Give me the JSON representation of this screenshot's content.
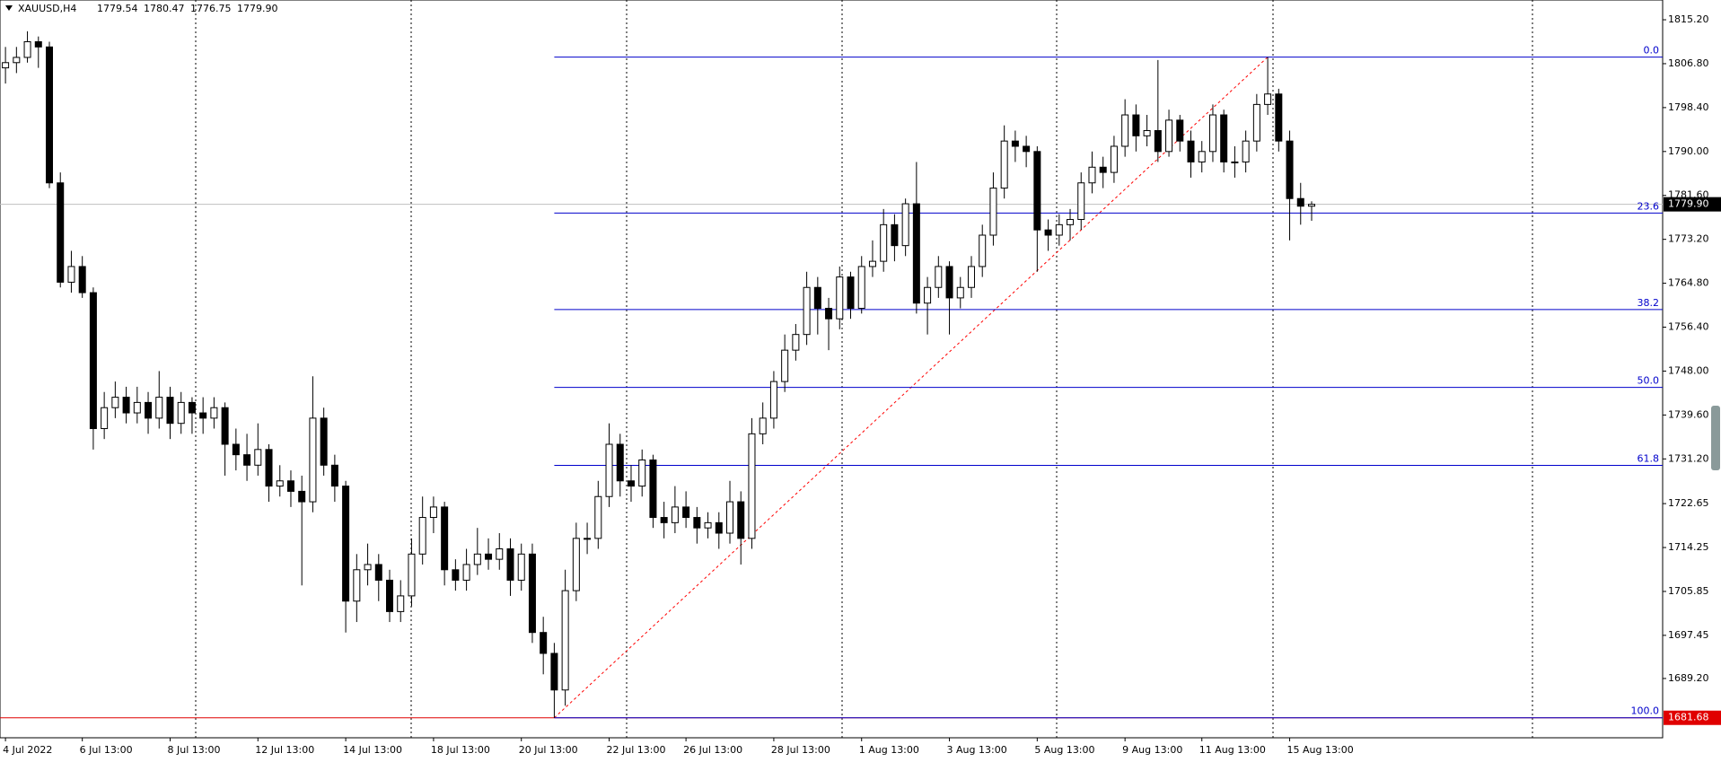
{
  "chart_data": {
    "type": "candlestick",
    "symbol": "XAUUSD,H4",
    "header_ohlc": [
      "1779.54",
      "1780.47",
      "1776.75",
      "1779.90"
    ],
    "up_color": "#ffffff",
    "down_color": "#000000",
    "fib_color": "#0000cc",
    "ylim": [
      1677.86,
      1818.98
    ],
    "yticks": [
      {
        "value": 1815.2,
        "label": "1815.20"
      },
      {
        "value": 1806.8,
        "label": "1806.80"
      },
      {
        "value": 1798.4,
        "label": "1798.40"
      },
      {
        "value": 1790,
        "label": "1790.00"
      },
      {
        "value": 1781.6,
        "label": "1781.60"
      },
      {
        "value": 1773.2,
        "label": "1773.20"
      },
      {
        "value": 1764.8,
        "label": "1764.80"
      },
      {
        "value": 1756.4,
        "label": "1756.40"
      },
      {
        "value": 1748,
        "label": "1748.00"
      },
      {
        "value": 1739.6,
        "label": "1739.60"
      },
      {
        "value": 1731.2,
        "label": "1731.20"
      },
      {
        "value": 1722.65,
        "label": "1722.65"
      },
      {
        "value": 1714.25,
        "label": "1714.25"
      },
      {
        "value": 1705.85,
        "label": "1705.85"
      },
      {
        "value": 1697.45,
        "label": "1697.45"
      },
      {
        "value": 1689.2,
        "label": "1689.20"
      }
    ],
    "last_price": {
      "value": 1779.9,
      "label": "1779.90"
    },
    "hline": 1681.68,
    "fibonacci": {
      "high": 1808.06,
      "low": 1681.68,
      "levels": [
        {
          "value": 0,
          "label": "0.0"
        },
        23.6,
        38.2,
        {
          "value": 50,
          "label": "50.0"
        },
        61.8,
        {
          "value": 100,
          "label": "100.0"
        }
      ]
    },
    "categories": [
      "4 Jul 2022",
      null,
      null,
      null,
      null,
      null,
      null,
      "6 Jul 13:00",
      null,
      null,
      null,
      null,
      null,
      null,
      null,
      "8 Jul 13:00",
      null,
      null,
      null,
      null,
      null,
      null,
      null,
      "12 Jul 13:00",
      null,
      null,
      null,
      null,
      null,
      null,
      null,
      "14 Jul 13:00",
      null,
      null,
      null,
      null,
      null,
      null,
      null,
      "18 Jul 13:00",
      null,
      null,
      null,
      null,
      null,
      null,
      null,
      "20 Jul 13:00",
      null,
      null,
      null,
      null,
      null,
      null,
      null,
      "22 Jul 13:00",
      null,
      null,
      null,
      null,
      null,
      null,
      "26 Jul 13:00",
      null,
      null,
      null,
      null,
      null,
      null,
      null,
      "28 Jul 13:00",
      null,
      null,
      null,
      null,
      null,
      null,
      null,
      "1 Aug 13:00",
      null,
      null,
      null,
      null,
      null,
      null,
      null,
      "3 Aug 13:00",
      null,
      null,
      null,
      null,
      null,
      null,
      null,
      "5 Aug 13:00",
      null,
      null,
      null,
      null,
      null,
      null,
      null,
      "9 Aug 13:00",
      null,
      null,
      null,
      null,
      null,
      null,
      "11 Aug 13:00",
      null,
      null,
      null,
      null,
      null,
      null,
      null,
      "15 Aug 13:00",
      null,
      null
    ],
    "candles": [
      [
        1806,
        1810,
        1803,
        1807
      ],
      [
        1807,
        1810,
        1805,
        1808
      ],
      [
        1808,
        1813,
        1807,
        1811
      ],
      [
        1811,
        1812,
        1806,
        1810
      ],
      [
        1810,
        1811,
        1783,
        1784
      ],
      [
        1784,
        1786,
        1764,
        1765
      ],
      [
        1765,
        1771,
        1763,
        1768
      ],
      [
        1768,
        1770,
        1762,
        1763
      ],
      [
        1763,
        1764,
        1733,
        1737
      ],
      [
        1737,
        1744,
        1735,
        1741
      ],
      [
        1741,
        1746,
        1739,
        1743
      ],
      [
        1743,
        1745,
        1738,
        1740
      ],
      [
        1740,
        1745,
        1738,
        1742
      ],
      [
        1742,
        1744,
        1736,
        1739
      ],
      [
        1739,
        1748,
        1737,
        1743
      ],
      [
        1743,
        1745,
        1735,
        1738
      ],
      [
        1738,
        1744,
        1736,
        1742
      ],
      [
        1742,
        1743,
        1736,
        1740
      ],
      [
        1740,
        1743,
        1736,
        1739
      ],
      [
        1739,
        1743,
        1737,
        1741
      ],
      [
        1741,
        1742,
        1728,
        1734
      ],
      [
        1734,
        1737,
        1729,
        1732
      ],
      [
        1732,
        1736,
        1727,
        1730
      ],
      [
        1730,
        1738,
        1728,
        1733
      ],
      [
        1733,
        1734,
        1723,
        1726
      ],
      [
        1726,
        1730,
        1724,
        1727
      ],
      [
        1727,
        1729,
        1722,
        1725
      ],
      [
        1725,
        1728,
        1707,
        1723
      ],
      [
        1723,
        1747,
        1721,
        1739
      ],
      [
        1739,
        1741,
        1728,
        1730
      ],
      [
        1730,
        1732,
        1723,
        1726
      ],
      [
        1726,
        1727,
        1698,
        1704
      ],
      [
        1704,
        1713,
        1700,
        1710
      ],
      [
        1710,
        1715,
        1707,
        1711
      ],
      [
        1711,
        1713,
        1704,
        1708
      ],
      [
        1708,
        1710,
        1700,
        1702
      ],
      [
        1702,
        1708,
        1700,
        1705
      ],
      [
        1705,
        1716,
        1703,
        1713
      ],
      [
        1713,
        1724,
        1711,
        1720
      ],
      [
        1720,
        1724,
        1717,
        1722
      ],
      [
        1722,
        1723,
        1707,
        1710
      ],
      [
        1710,
        1712,
        1706,
        1708
      ],
      [
        1708,
        1714,
        1706,
        1711
      ],
      [
        1711,
        1718,
        1709,
        1713
      ],
      [
        1713,
        1716,
        1710,
        1712
      ],
      [
        1712,
        1717,
        1710,
        1714
      ],
      [
        1714,
        1716,
        1705,
        1708
      ],
      [
        1708,
        1715,
        1706,
        1713
      ],
      [
        1713,
        1715,
        1696,
        1698
      ],
      [
        1698,
        1701,
        1690,
        1694
      ],
      [
        1694,
        1696,
        1681.68,
        1687
      ],
      [
        1687,
        1710,
        1684,
        1706
      ],
      [
        1706,
        1719,
        1704,
        1716
      ],
      [
        1716,
        1719,
        1713,
        1716
      ],
      [
        1716,
        1727,
        1714,
        1724
      ],
      [
        1724,
        1738,
        1722,
        1734
      ],
      [
        1734,
        1736,
        1724,
        1727
      ],
      [
        1727,
        1730,
        1723,
        1726
      ],
      [
        1726,
        1733,
        1724,
        1731
      ],
      [
        1731,
        1732,
        1718,
        1720
      ],
      [
        1720,
        1723,
        1716,
        1719
      ],
      [
        1719,
        1726,
        1717,
        1722
      ],
      [
        1722,
        1725,
        1718,
        1720
      ],
      [
        1720,
        1722,
        1715,
        1718
      ],
      [
        1718,
        1721,
        1716,
        1719
      ],
      [
        1719,
        1721,
        1714,
        1717
      ],
      [
        1717,
        1727,
        1715,
        1723
      ],
      [
        1723,
        1725,
        1711,
        1716
      ],
      [
        1716,
        1739,
        1714,
        1736
      ],
      [
        1736,
        1742,
        1734,
        1739
      ],
      [
        1739,
        1748,
        1737,
        1746
      ],
      [
        1746,
        1755,
        1744,
        1752
      ],
      [
        1752,
        1757,
        1750,
        1755
      ],
      [
        1755,
        1767,
        1753,
        1764
      ],
      [
        1764,
        1766,
        1755,
        1760
      ],
      [
        1760,
        1762,
        1752,
        1758
      ],
      [
        1758,
        1768,
        1756,
        1766
      ],
      [
        1766,
        1767,
        1758,
        1760
      ],
      [
        1760,
        1770,
        1759,
        1768
      ],
      [
        1768,
        1773,
        1766,
        1769
      ],
      [
        1769,
        1779,
        1767,
        1776
      ],
      [
        1776,
        1778,
        1769,
        1772
      ],
      [
        1772,
        1781,
        1770,
        1780
      ],
      [
        1780,
        1788,
        1759,
        1761
      ],
      [
        1761,
        1766,
        1755,
        1764
      ],
      [
        1764,
        1770,
        1762,
        1768
      ],
      [
        1768,
        1769,
        1755,
        1762
      ],
      [
        1762,
        1766,
        1760,
        1764
      ],
      [
        1764,
        1770,
        1762,
        1768
      ],
      [
        1768,
        1776,
        1766,
        1774
      ],
      [
        1774,
        1786,
        1772,
        1783
      ],
      [
        1783,
        1795,
        1781,
        1792
      ],
      [
        1792,
        1794,
        1788,
        1791
      ],
      [
        1791,
        1793,
        1787,
        1790
      ],
      [
        1790,
        1791,
        1767,
        1775
      ],
      [
        1775,
        1777,
        1771,
        1774
      ],
      [
        1774,
        1778,
        1772,
        1776
      ],
      [
        1776,
        1779,
        1773,
        1777
      ],
      [
        1777,
        1786,
        1775,
        1784
      ],
      [
        1784,
        1790,
        1782,
        1787
      ],
      [
        1787,
        1789,
        1783,
        1786
      ],
      [
        1786,
        1793,
        1784,
        1791
      ],
      [
        1791,
        1800,
        1789,
        1797
      ],
      [
        1797,
        1799,
        1790,
        1793
      ],
      [
        1793,
        1797,
        1791,
        1794
      ],
      [
        1794,
        1807.5,
        1788,
        1790
      ],
      [
        1790,
        1798,
        1789,
        1796
      ],
      [
        1796,
        1797,
        1790,
        1792
      ],
      [
        1792,
        1794,
        1785,
        1788
      ],
      [
        1788,
        1792,
        1786,
        1790
      ],
      [
        1790,
        1799,
        1788,
        1797
      ],
      [
        1797,
        1798,
        1786,
        1788
      ],
      [
        1788,
        1791,
        1785,
        1788
      ],
      [
        1788,
        1794,
        1786,
        1792
      ],
      [
        1792,
        1801,
        1790,
        1799
      ],
      [
        1799,
        1808.06,
        1797,
        1801
      ],
      [
        1801,
        1802,
        1790,
        1792
      ],
      [
        1792,
        1794,
        1773,
        1781
      ],
      [
        1781,
        1784,
        1776,
        1779.54
      ],
      [
        1779.54,
        1780.47,
        1776.75,
        1779.9
      ]
    ]
  }
}
